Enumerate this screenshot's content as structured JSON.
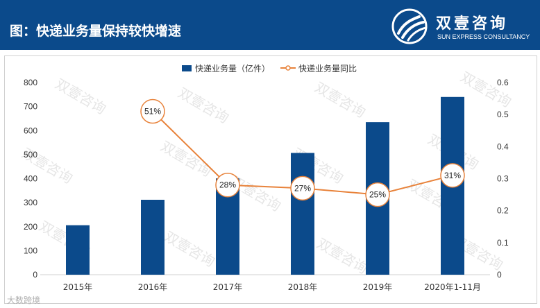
{
  "header": {
    "title": "图：快递业务量保持较快增速",
    "logo_cn": "双壹咨询",
    "logo_en": "SUN EXPRESS CONSULTANCY"
  },
  "watermark": "双壹咨询",
  "bottom_mark": "大数跨境",
  "colors": {
    "header_bg": "#0b4a8b",
    "bar": "#0b4a8b",
    "line": "#e8823a"
  },
  "chart_data": {
    "type": "bar",
    "categories": [
      "2015年",
      "2016年",
      "2017年",
      "2018年",
      "2019年",
      "2020年1-11月"
    ],
    "series": [
      {
        "name": "快递业务量（亿件）",
        "type": "bar",
        "axis": "left",
        "values": [
          206,
          312,
          401,
          507,
          635,
          740
        ]
      },
      {
        "name": "快递业务量同比",
        "type": "line",
        "axis": "right",
        "values": [
          null,
          0.51,
          0.28,
          0.27,
          0.25,
          0.31
        ],
        "labels": [
          "",
          "51%",
          "28%",
          "27%",
          "25%",
          "31%"
        ]
      }
    ],
    "ylim": [
      0,
      800
    ],
    "yticks": [
      "0",
      "100",
      "200",
      "300",
      "400",
      "500",
      "600",
      "700",
      "800"
    ],
    "y2lim": [
      0,
      0.6
    ],
    "y2ticks": [
      "0",
      "0.1",
      "0.2",
      "0.3",
      "0.4",
      "0.5",
      "0.6"
    ],
    "legend_position": "top-center",
    "grid": false
  }
}
